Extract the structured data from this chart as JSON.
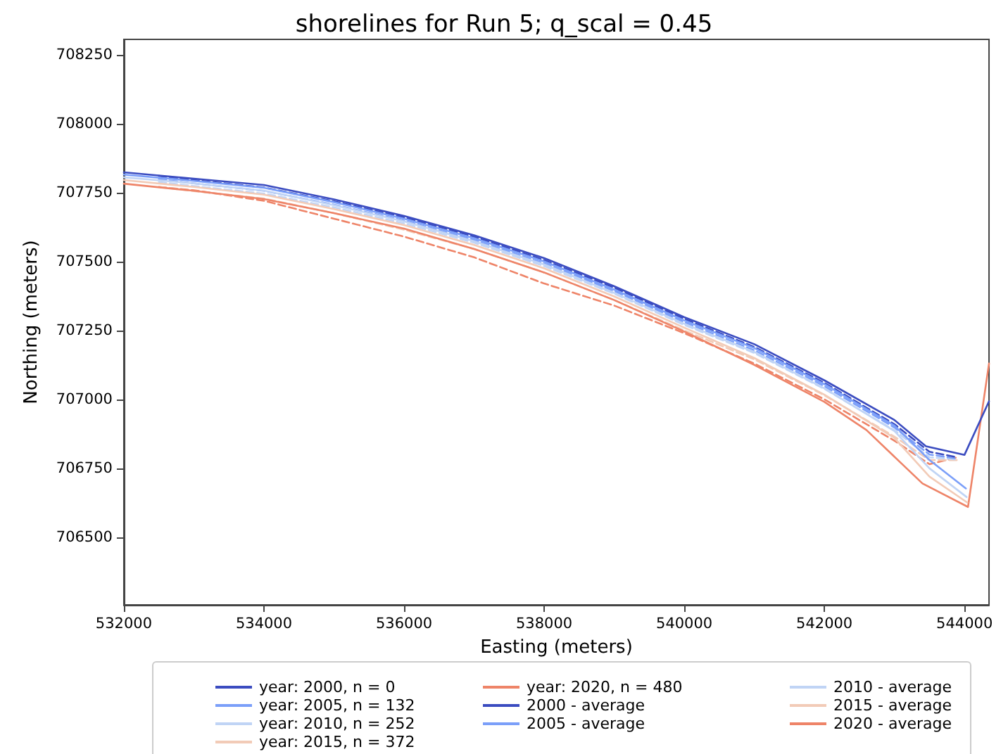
{
  "chart_data": {
    "type": "line",
    "title": "shorelines for Run 5; q_scal = 0.45",
    "xlabel": "Easting (meters)",
    "ylabel": "Northing (meters)",
    "xlim": [
      532000,
      544350
    ],
    "xticks": [
      532000,
      534000,
      536000,
      538000,
      540000,
      542000,
      544000
    ],
    "ylim": [
      706255,
      708305
    ],
    "yticks": [
      706500,
      706750,
      707000,
      707250,
      707500,
      707750,
      708000,
      708250
    ],
    "grid": false,
    "legend": "bottom",
    "marker": "none",
    "series": [
      {
        "name": "year: 2000, n = 0",
        "color": "#3b4cc0",
        "line_style": "solid",
        "x": [
          532000,
          533000,
          534000,
          535000,
          536000,
          537000,
          538000,
          539000,
          540000,
          541000,
          542000,
          543000,
          543450,
          544000,
          544350
        ],
        "values": [
          707823,
          707800,
          707777,
          707725,
          707665,
          707595,
          707512,
          707410,
          707298,
          707200,
          707069,
          706925,
          706830,
          706799,
          706993
        ]
      },
      {
        "name": "year: 2005, n = 132",
        "color": "#7b9ff9",
        "line_style": "solid",
        "x": [
          532000,
          533000,
          534000,
          535000,
          536000,
          537000,
          538000,
          539000,
          540000,
          541000,
          542000,
          543000,
          543500,
          544020
        ],
        "values": [
          707815,
          707792,
          707767,
          707715,
          707655,
          707584,
          707500,
          707398,
          707286,
          707186,
          707055,
          706905,
          706780,
          706677
        ]
      },
      {
        "name": "year: 2010, n = 252",
        "color": "#c0d4f5",
        "line_style": "solid",
        "x": [
          532000,
          533000,
          534000,
          535000,
          536000,
          537000,
          538000,
          539000,
          540000,
          541000,
          542000,
          543000,
          543500,
          544030
        ],
        "values": [
          707805,
          707783,
          707757,
          707704,
          707645,
          707573,
          707489,
          707386,
          707274,
          707172,
          707040,
          706885,
          706750,
          706646
        ]
      },
      {
        "name": "year: 2015, n = 372",
        "color": "#f2cbb7",
        "line_style": "solid",
        "x": [
          532000,
          533000,
          534000,
          535000,
          536000,
          537000,
          538000,
          539000,
          540000,
          541000,
          542000,
          543000,
          543500,
          544040
        ],
        "values": [
          707795,
          707770,
          707742,
          707690,
          707632,
          707560,
          707475,
          707373,
          707260,
          707150,
          707017,
          706860,
          706720,
          706626
        ]
      },
      {
        "name": "year: 2020, n = 480",
        "color": "#ee8468",
        "line_style": "solid",
        "x": [
          532000,
          533000,
          534000,
          535000,
          536000,
          537000,
          538000,
          539000,
          540000,
          541000,
          542000,
          542600,
          543400,
          544050,
          544350
        ],
        "values": [
          707782,
          707756,
          707726,
          707675,
          707619,
          707545,
          707460,
          707360,
          707246,
          707125,
          706991,
          706889,
          706695,
          706610,
          707130
        ]
      },
      {
        "name": "2000 - average",
        "color": "#3b4cc0",
        "line_style": "dashed",
        "x": [
          532500,
          533000,
          534000,
          535000,
          536000,
          537000,
          538000,
          539000,
          540000,
          541000,
          542000,
          543000,
          543500,
          543900
        ],
        "values": [
          707810,
          707795,
          707768,
          707718,
          707660,
          707590,
          707505,
          707405,
          707292,
          707190,
          707060,
          706910,
          706810,
          706790
        ]
      },
      {
        "name": "2005 - average",
        "color": "#7b9ff9",
        "line_style": "dashed",
        "x": [
          532500,
          533000,
          534000,
          535000,
          536000,
          537000,
          538000,
          539000,
          540000,
          541000,
          542000,
          543000,
          543500,
          543900
        ],
        "values": [
          707798,
          707783,
          707756,
          707706,
          707648,
          707578,
          707493,
          707393,
          707280,
          707178,
          707048,
          706898,
          706800,
          706785
        ]
      },
      {
        "name": "2010 - average",
        "color": "#c0d4f5",
        "line_style": "dashed",
        "x": [
          532500,
          533000,
          534000,
          535000,
          536000,
          537000,
          538000,
          539000,
          540000,
          541000,
          542000,
          543000,
          543500,
          543900
        ],
        "values": [
          707788,
          707773,
          707746,
          707696,
          707638,
          707568,
          707483,
          707383,
          707270,
          707168,
          707038,
          706888,
          706790,
          706782
        ]
      },
      {
        "name": "2015 - average",
        "color": "#f2cbb7",
        "line_style": "dashed",
        "x": [
          532500,
          533000,
          534000,
          535000,
          536000,
          537000,
          538000,
          539000,
          540000,
          541000,
          542000,
          543000,
          543500,
          543900
        ],
        "values": [
          707770,
          707755,
          707728,
          707675,
          707615,
          707545,
          707460,
          707360,
          707250,
          707145,
          707015,
          706865,
          706780,
          706780
        ]
      },
      {
        "name": "2020 - average",
        "color": "#ee8468",
        "line_style": "dashed",
        "x": [
          532500,
          533000,
          534000,
          535000,
          536000,
          537000,
          538000,
          539000,
          540000,
          541000,
          542000,
          543000,
          543500,
          543900
        ],
        "values": [
          707770,
          707758,
          707720,
          707655,
          707590,
          707515,
          707420,
          707340,
          707240,
          707130,
          707000,
          706850,
          706765,
          706790
        ]
      }
    ]
  }
}
